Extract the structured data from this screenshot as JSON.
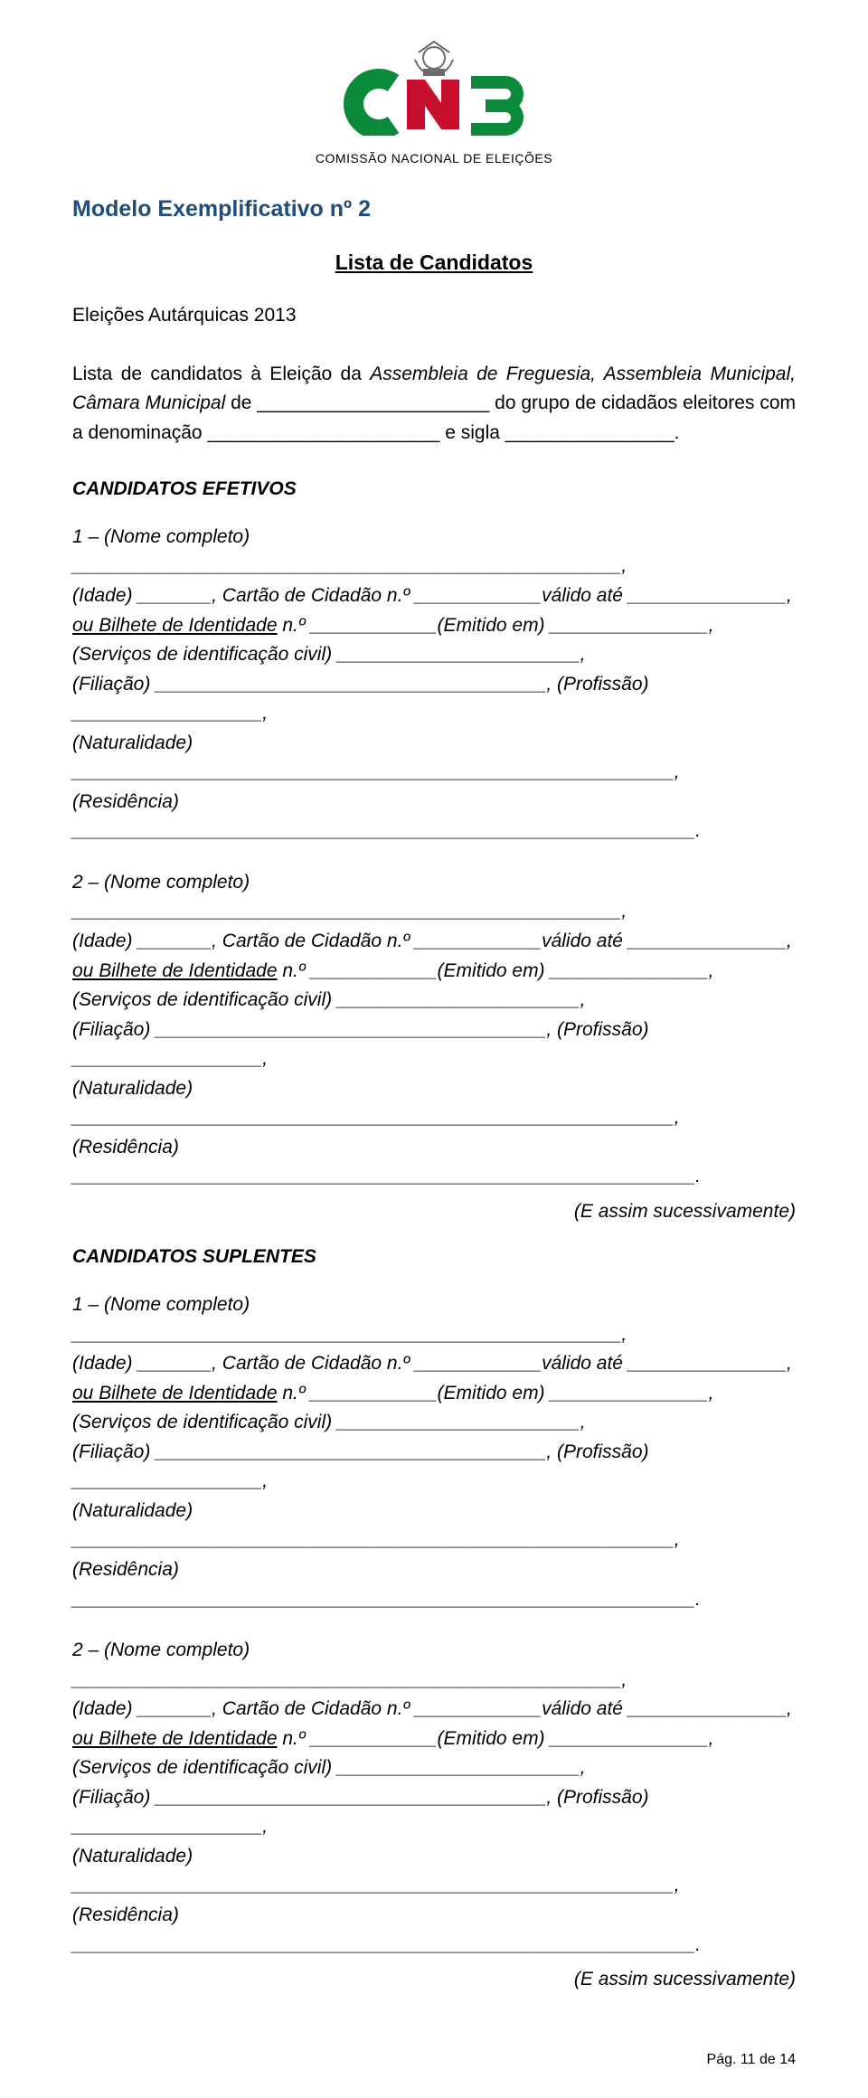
{
  "colors": {
    "title": "#1f4e79",
    "logo_green": "#0a8a3a",
    "logo_red": "#c8102e",
    "logo_grey": "#6b6b6b",
    "text": "#000000",
    "background": "#ffffff"
  },
  "logo_caption": "COMISSÃO NACIONAL DE ELEIÇÕES",
  "model_title": "Modelo Exemplificativo nº 2",
  "list_title": "Lista de Candidatos",
  "intro": {
    "prefix": "Eleições Autárquicas 2013",
    "line1_a": "Lista de candidatos à Eleição da ",
    "line1_b": "Assembleia de Freguesia, Assembleia Municipal, Câmara Municipal",
    "line1_c": " de ______________________ do grupo de cidadãos eleitores com a denominação ______________________ e sigla ________________."
  },
  "section_efetivos": "CANDIDATOS EFETIVOS",
  "section_suplentes": "CANDIDATOS SUPLENTES",
  "entry_template": {
    "l1a": " – (Nome completo) ____________________________________________________,",
    "l2": "(Idade) _______, Cartão de Cidadão n.º ____________válido até _______________,",
    "l3a": "ou Bilhete de Identidade",
    "l3b": " n.º ____________(Emitido em) _______________, (Serviços de identificação civil) _______________________,",
    "l4": "(Filiação) _____________________________________, (Profissão) __________________,",
    "l5": "(Naturalidade) _________________________________________________________,",
    "l6": "(Residência) ___________________________________________________________."
  },
  "efetivos_numbers": [
    "1",
    "2"
  ],
  "suplentes_numbers": [
    "1",
    "2"
  ],
  "successively": "(E assim sucessivamente)",
  "footer": "Pág. 11 de 14"
}
